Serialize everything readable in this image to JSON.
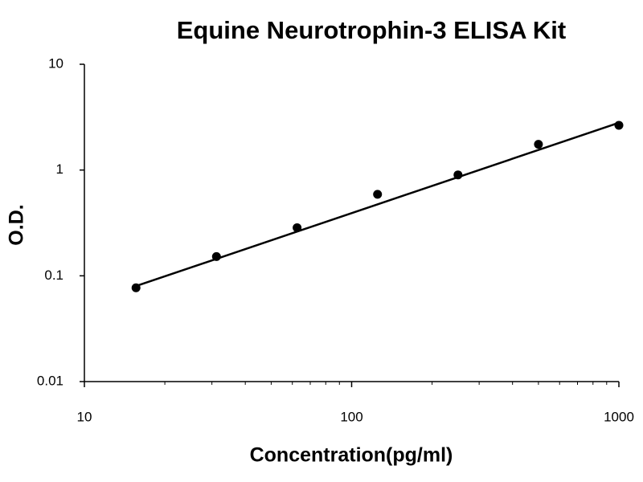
{
  "chart_data": {
    "type": "scatter",
    "title": "Equine Neurotrophin-3 ELISA Kit",
    "x_label": "Concentration(pg/ml)",
    "y_label": "O.D.",
    "x_log": true,
    "y_log": true,
    "xlim": [
      10,
      1000
    ],
    "ylim": [
      0.01,
      10
    ],
    "xticks": [
      10,
      100,
      1000
    ],
    "xminorticks": [
      20,
      30,
      40,
      50,
      60,
      70,
      80,
      90,
      200,
      300,
      400,
      500,
      600,
      700,
      800,
      900
    ],
    "yticks": [
      0.01,
      0.1,
      1,
      10
    ],
    "series": [
      {
        "style": "points",
        "color": "#000000",
        "x": [
          15.6,
          31.2,
          62.5,
          125,
          250,
          500,
          1000
        ],
        "values": [
          0.077,
          0.152,
          0.285,
          0.59,
          0.9,
          1.75,
          2.65
        ]
      },
      {
        "style": "line",
        "color": "#000000",
        "x": [
          15.6,
          1000
        ],
        "values": [
          0.08,
          2.8
        ]
      }
    ]
  }
}
